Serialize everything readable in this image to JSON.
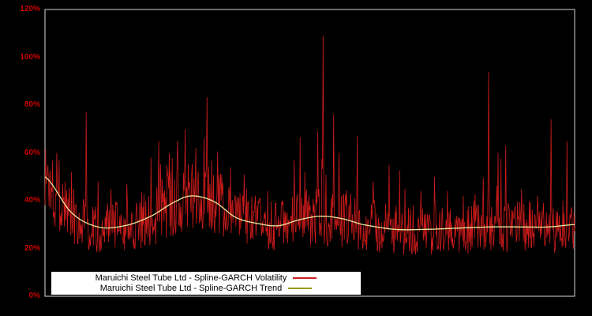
{
  "chart_data": {
    "type": "line",
    "background_color": "#000000",
    "plot_border_color": "#d9d9d9",
    "tick_label_color": "#cc0000",
    "ylim": [
      0,
      120
    ],
    "xlabel": "",
    "ylabel": "",
    "grid": false,
    "yticks": [
      "0%",
      "20%",
      "40%",
      "60%",
      "80%",
      "100%",
      "120%"
    ],
    "legend_position": "bottom-center",
    "legend_background": "#ffffff",
    "series": [
      {
        "name": "Maruichi Steel Tube Ltd - Spline-GARCH Volatility",
        "color": "#cf1b1b",
        "style": "spiky"
      },
      {
        "name": "Maruichi Steel Tube Ltd - Spline-GARCH Trend",
        "color": "#e8e89a",
        "legend_line_color": "#9a9a10",
        "style": "smooth"
      }
    ],
    "trend_points_pct": [
      [
        0,
        50
      ],
      [
        0.05,
        35
      ],
      [
        0.1,
        29
      ],
      [
        0.15,
        29.5
      ],
      [
        0.2,
        33.5
      ],
      [
        0.25,
        40
      ],
      [
        0.28,
        42
      ],
      [
        0.32,
        39.5
      ],
      [
        0.36,
        33
      ],
      [
        0.4,
        30.5
      ],
      [
        0.44,
        29.5
      ],
      [
        0.48,
        32
      ],
      [
        0.52,
        33.5
      ],
      [
        0.56,
        32.5
      ],
      [
        0.6,
        30
      ],
      [
        0.66,
        28
      ],
      [
        0.72,
        28
      ],
      [
        0.78,
        28.5
      ],
      [
        0.84,
        29
      ],
      [
        0.9,
        29
      ],
      [
        0.95,
        29
      ],
      [
        1,
        30
      ]
    ],
    "volatility_spikes_pct": [
      [
        0.015,
        57
      ],
      [
        0.022,
        60
      ],
      [
        0.05,
        52
      ],
      [
        0.078,
        77
      ],
      [
        0.1,
        48
      ],
      [
        0.125,
        45
      ],
      [
        0.155,
        47
      ],
      [
        0.2,
        58
      ],
      [
        0.215,
        65
      ],
      [
        0.235,
        60
      ],
      [
        0.25,
        65
      ],
      [
        0.265,
        70
      ],
      [
        0.285,
        62
      ],
      [
        0.3,
        66
      ],
      [
        0.315,
        57
      ],
      [
        0.35,
        54
      ],
      [
        0.38,
        45
      ],
      [
        0.42,
        44
      ],
      [
        0.47,
        57
      ],
      [
        0.49,
        52
      ],
      [
        0.515,
        69
      ],
      [
        0.525,
        109
      ],
      [
        0.545,
        76
      ],
      [
        0.555,
        60
      ],
      [
        0.59,
        67
      ],
      [
        0.62,
        48
      ],
      [
        0.65,
        55
      ],
      [
        0.68,
        45
      ],
      [
        0.71,
        44
      ],
      [
        0.735,
        50
      ],
      [
        0.76,
        44
      ],
      [
        0.79,
        42
      ],
      [
        0.81,
        40
      ],
      [
        0.838,
        94
      ],
      [
        0.855,
        60
      ],
      [
        0.87,
        63
      ],
      [
        0.9,
        45
      ],
      [
        0.93,
        42
      ],
      [
        0.955,
        74
      ],
      [
        0.985,
        65
      ]
    ],
    "volatility_base_range_pct": [
      17.5,
      112
    ],
    "n_points": 900,
    "noise_seed": 1337,
    "noise_amplitude": 0.38,
    "random_spike_prob": 0.035,
    "random_spike_scale": 0.85
  }
}
